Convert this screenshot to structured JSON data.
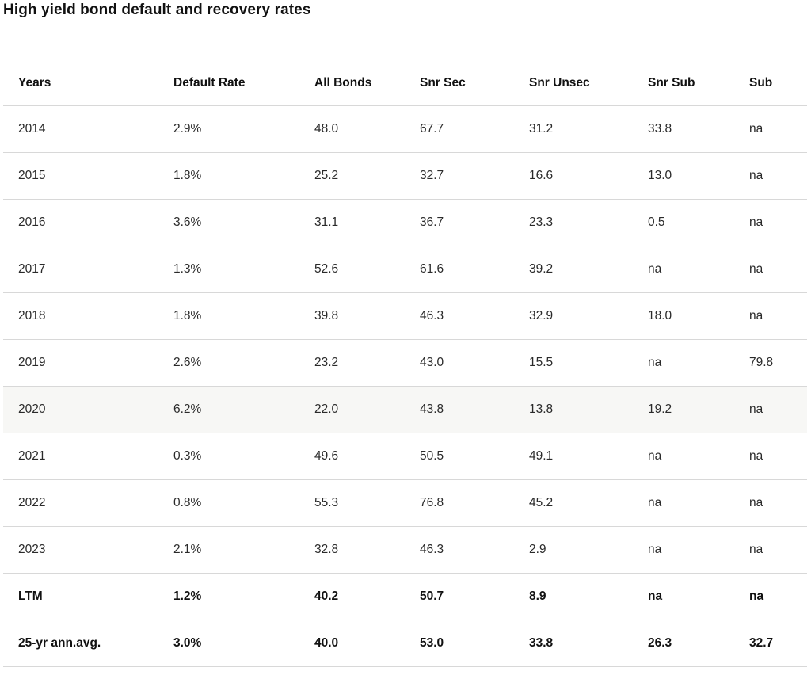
{
  "title": "High yield bond default and recovery rates",
  "table": {
    "headers": [
      "Years",
      "Default Rate",
      "All Bonds",
      "Snr Sec",
      "Snr Unsec",
      "Snr Sub",
      "Sub"
    ],
    "rows": [
      [
        "2014",
        "2.9%",
        "48.0",
        "67.7",
        "31.2",
        "33.8",
        "na"
      ],
      [
        "2015",
        "1.8%",
        "25.2",
        "32.7",
        "16.6",
        "13.0",
        "na"
      ],
      [
        "2016",
        "3.6%",
        "31.1",
        "36.7",
        "23.3",
        "0.5",
        "na"
      ],
      [
        "2017",
        "1.3%",
        "52.6",
        "61.6",
        "39.2",
        "na",
        "na"
      ],
      [
        "2018",
        "1.8%",
        "39.8",
        "46.3",
        "32.9",
        "18.0",
        "na"
      ],
      [
        "2019",
        "2.6%",
        "23.2",
        "43.0",
        "15.5",
        "na",
        "79.8"
      ],
      [
        "2020",
        "6.2%",
        "22.0",
        "43.8",
        "13.8",
        "19.2",
        "na"
      ],
      [
        "2021",
        "0.3%",
        "49.6",
        "50.5",
        "49.1",
        "na",
        "na"
      ],
      [
        "2022",
        "0.8%",
        "55.3",
        "76.8",
        "45.2",
        "na",
        "na"
      ],
      [
        "2023",
        "2.1%",
        "32.8",
        "46.3",
        "2.9",
        "na",
        "na"
      ],
      [
        "LTM",
        "1.2%",
        "40.2",
        "50.7",
        "8.9",
        "na",
        "na"
      ],
      [
        "25-yr ann.avg.",
        "3.0%",
        "40.0",
        "53.0",
        "33.8",
        "26.3",
        "32.7"
      ]
    ]
  }
}
